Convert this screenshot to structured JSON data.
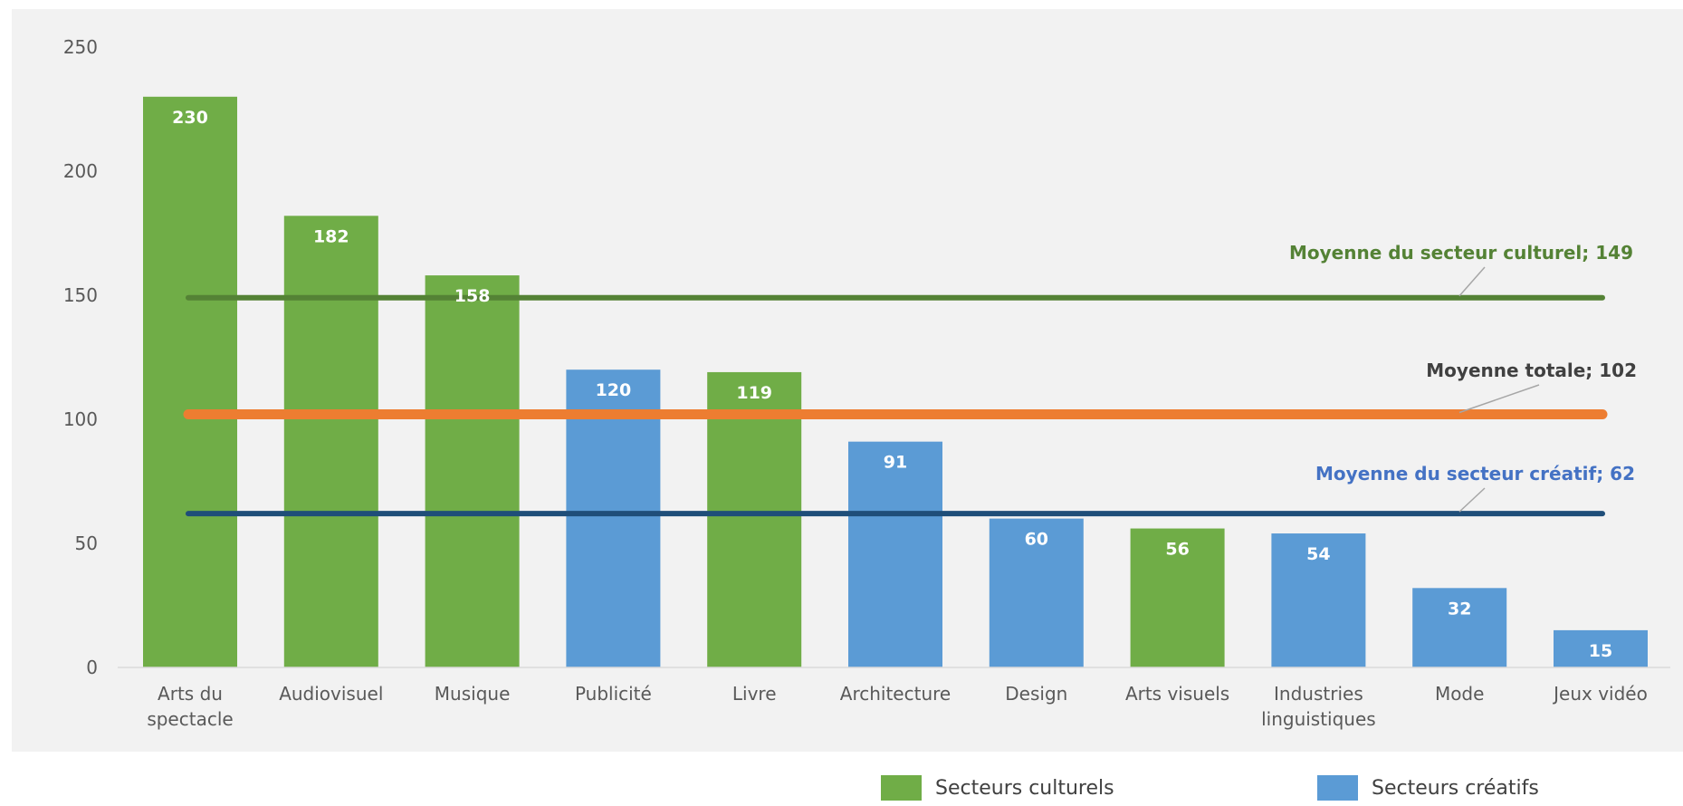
{
  "chart_data": {
    "type": "bar",
    "categories": [
      "Arts du spectacle",
      "Audiovisuel",
      "Musique",
      "Publicité",
      "Livre",
      "Architecture",
      "Design",
      "Arts visuels",
      "Industries linguistiques",
      "Mode",
      "Jeux vidéo"
    ],
    "category_lines": [
      [
        "Arts du",
        "spectacle"
      ],
      [
        "Audiovisuel"
      ],
      [
        "Musique"
      ],
      [
        "Publicité"
      ],
      [
        "Livre"
      ],
      [
        "Architecture"
      ],
      [
        "Design"
      ],
      [
        "Arts visuels"
      ],
      [
        "Industries",
        "linguistiques"
      ],
      [
        "Mode"
      ],
      [
        "Jeux vidéo"
      ]
    ],
    "values": [
      230,
      182,
      158,
      120,
      119,
      91,
      60,
      56,
      54,
      32,
      15
    ],
    "groups": [
      "Secteurs culturels",
      "Secteurs culturels",
      "Secteurs culturels",
      "Secteurs créatifs",
      "Secteurs culturels",
      "Secteurs créatifs",
      "Secteurs créatifs",
      "Secteurs culturels",
      "Secteurs créatifs",
      "Secteurs créatifs",
      "Secteurs créatifs"
    ],
    "ylim": [
      0,
      250
    ],
    "yticks": [
      0,
      50,
      100,
      150,
      200,
      250
    ],
    "grid": false,
    "legend_position": "bottom",
    "legend": [
      {
        "name": "Secteurs culturels",
        "color": "#70AD47"
      },
      {
        "name": "Secteurs créatifs",
        "color": "#5B9BD5"
      }
    ],
    "reference_lines": [
      {
        "label": "Moyenne du secteur culturel; 149",
        "value": 149,
        "color": "#548235",
        "label_color": "#548235"
      },
      {
        "label": "Moyenne totale; 102",
        "value": 102,
        "color": "#ED7D31",
        "label_color": "#404040"
      },
      {
        "label": "Moyenne du secteur créatif; 62",
        "value": 62,
        "color": "#1F4E79",
        "label_color": "#4472C4"
      }
    ],
    "colors": {
      "plot_background": "#F2F2F2",
      "axis": "#D9D9D9"
    }
  }
}
